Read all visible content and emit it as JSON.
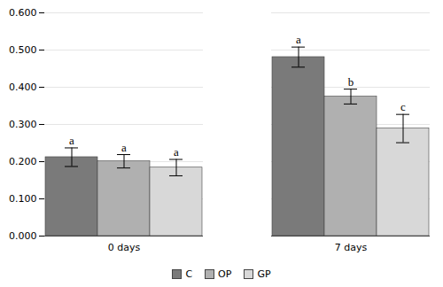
{
  "chart_data": {
    "type": "bar",
    "categories": [
      "0 days",
      "7 days"
    ],
    "series": [
      {
        "name": "C",
        "color": "#7a7a7a",
        "values": [
          0.212,
          0.481
        ],
        "errors": [
          0.025,
          0.027
        ],
        "annotations": [
          "a",
          "a"
        ]
      },
      {
        "name": "OP",
        "color": "#b0b0b0",
        "values": [
          0.201,
          0.375
        ],
        "errors": [
          0.018,
          0.02
        ],
        "annotations": [
          "a",
          "b"
        ]
      },
      {
        "name": "GP",
        "color": "#d8d8d8",
        "values": [
          0.184,
          0.289
        ],
        "errors": [
          0.022,
          0.038
        ],
        "annotations": [
          "a",
          "c"
        ]
      }
    ],
    "ylim": [
      0.0,
      0.6
    ],
    "yticks": [
      {
        "value": 0.0,
        "label": "0.000"
      },
      {
        "value": 0.1,
        "label": "0.100"
      },
      {
        "value": 0.2,
        "label": "0.200"
      },
      {
        "value": 0.3,
        "label": "0.300"
      },
      {
        "value": 0.4,
        "label": "0.400"
      },
      {
        "value": 0.5,
        "label": "0.500"
      },
      {
        "value": 0.6,
        "label": "0.600"
      }
    ],
    "grid": true,
    "legend": "bottom"
  }
}
